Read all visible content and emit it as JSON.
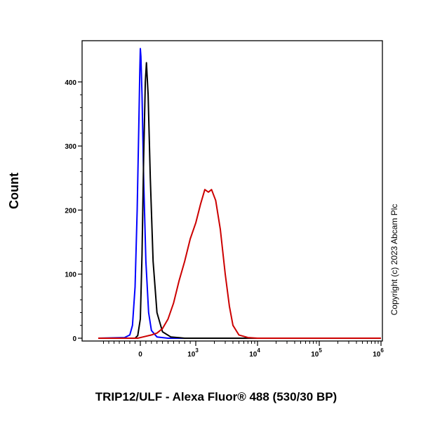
{
  "chart_data": {
    "type": "line",
    "xlabel": "TRIP12/ULF - Alexa Fluor® 488 (530/30 BP)",
    "ylabel": "Count",
    "copyright": "Copyright (c) 2023 Abcam Plc",
    "x_scale": "biexponential",
    "xlim": [
      -800,
      1000000
    ],
    "ylim": [
      0,
      460
    ],
    "y_ticks": [
      0,
      100,
      200,
      300,
      400
    ],
    "x_ticks": [
      {
        "value": 0,
        "base": "0",
        "exp": ""
      },
      {
        "value": 1000,
        "base": "10",
        "exp": "3"
      },
      {
        "value": 10000,
        "base": "10",
        "exp": "4"
      },
      {
        "value": 100000,
        "base": "10",
        "exp": "5"
      },
      {
        "value": 1000000,
        "base": "10",
        "exp": "6"
      }
    ],
    "grid": false,
    "series": [
      {
        "color": "#0000ff",
        "points": [
          [
            -800,
            0
          ],
          [
            -300,
            1
          ],
          [
            -200,
            5
          ],
          [
            -150,
            20
          ],
          [
            -100,
            80
          ],
          [
            -60,
            200
          ],
          [
            -30,
            330
          ],
          [
            -10,
            420
          ],
          [
            0,
            452
          ],
          [
            10,
            440
          ],
          [
            30,
            380
          ],
          [
            60,
            250
          ],
          [
            100,
            120
          ],
          [
            150,
            40
          ],
          [
            200,
            12
          ],
          [
            300,
            2
          ],
          [
            500,
            0
          ],
          [
            1000000,
            0
          ]
        ]
      },
      {
        "color": "#000000",
        "points": [
          [
            -800,
            0
          ],
          [
            -100,
            0
          ],
          [
            -50,
            4
          ],
          [
            0,
            30
          ],
          [
            30,
            130
          ],
          [
            60,
            280
          ],
          [
            90,
            400
          ],
          [
            110,
            430
          ],
          [
            140,
            380
          ],
          [
            180,
            250
          ],
          [
            230,
            120
          ],
          [
            300,
            40
          ],
          [
            400,
            10
          ],
          [
            550,
            2
          ],
          [
            800,
            0
          ],
          [
            1000000,
            0
          ]
        ]
      },
      {
        "color": "#cc0000",
        "points": [
          [
            -800,
            0
          ],
          [
            -50,
            0
          ],
          [
            50,
            2
          ],
          [
            200,
            5
          ],
          [
            300,
            8
          ],
          [
            400,
            15
          ],
          [
            500,
            30
          ],
          [
            600,
            55
          ],
          [
            700,
            90
          ],
          [
            800,
            120
          ],
          [
            900,
            155
          ],
          [
            1000,
            180
          ],
          [
            1200,
            210
          ],
          [
            1400,
            232
          ],
          [
            1600,
            228
          ],
          [
            1800,
            232
          ],
          [
            2100,
            215
          ],
          [
            2500,
            170
          ],
          [
            3000,
            100
          ],
          [
            3500,
            50
          ],
          [
            4000,
            20
          ],
          [
            5000,
            5
          ],
          [
            7000,
            1
          ],
          [
            10000,
            0
          ],
          [
            1000000,
            0
          ]
        ]
      }
    ]
  }
}
